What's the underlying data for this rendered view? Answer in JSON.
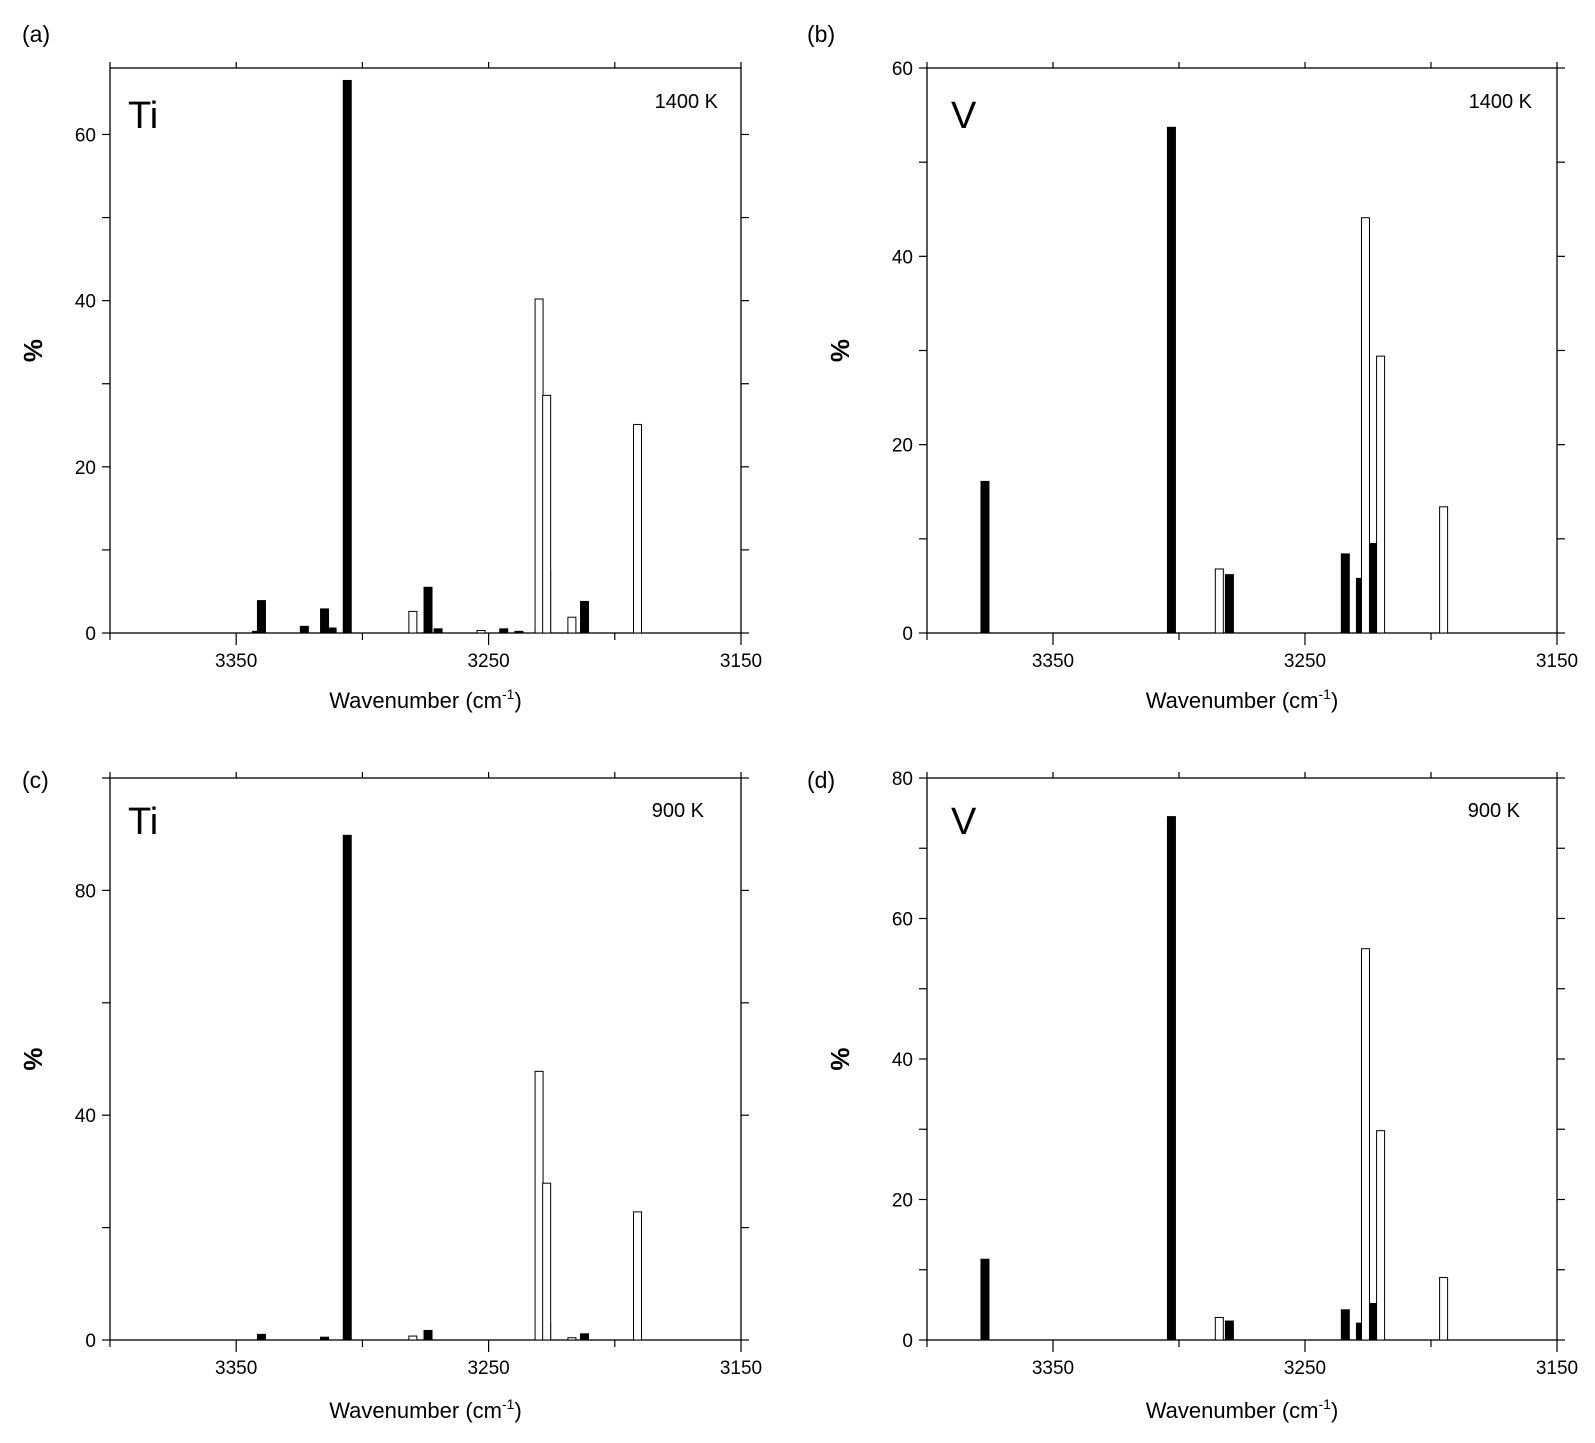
{
  "chart_data": [
    {
      "type": "bar",
      "panel": "(a)",
      "element": "Ti",
      "temperature": "1400 K",
      "xlabel": "Wavenumber",
      "xunit_base": "cm",
      "xunit_exp": "-1",
      "ylabel": "%",
      "xlim": [
        3400,
        3150
      ],
      "ylim": [
        0,
        68
      ],
      "x_ticks": [
        3350,
        3250,
        3150
      ],
      "y_ticks": [
        0,
        20,
        40,
        60
      ],
      "series": [
        {
          "name": "filled",
          "fill": "#000000",
          "points": [
            {
              "x": 3342,
              "y": 0.2
            },
            {
              "x": 3340,
              "y": 3.9
            },
            {
              "x": 3323,
              "y": 0.8
            },
            {
              "x": 3315,
              "y": 2.9
            },
            {
              "x": 3312,
              "y": 0.6
            },
            {
              "x": 3306,
              "y": 66.5
            },
            {
              "x": 3274,
              "y": 5.5
            },
            {
              "x": 3270,
              "y": 0.5
            },
            {
              "x": 3244,
              "y": 0.5
            },
            {
              "x": 3238,
              "y": 0.2
            },
            {
              "x": 3230,
              "y": 0.4
            },
            {
              "x": 3227,
              "y": 7.5
            },
            {
              "x": 3212,
              "y": 3.8
            }
          ]
        },
        {
          "name": "open",
          "fill": "#ffffff",
          "points": [
            {
              "x": 3280,
              "y": 2.6
            },
            {
              "x": 3253,
              "y": 0.3
            },
            {
              "x": 3230,
              "y": 40.2
            },
            {
              "x": 3227,
              "y": 28.6
            },
            {
              "x": 3217,
              "y": 1.9
            },
            {
              "x": 3191,
              "y": 25.1
            }
          ]
        }
      ]
    },
    {
      "type": "bar",
      "panel": "(b)",
      "element": "V",
      "temperature": "1400 K",
      "xlabel": "Wavenumber",
      "xunit_base": "cm",
      "xunit_exp": "-1",
      "ylabel": "%",
      "xlim": [
        3400,
        3150
      ],
      "ylim": [
        0,
        60
      ],
      "x_ticks": [
        3350,
        3250,
        3150
      ],
      "y_ticks": [
        0,
        20,
        40,
        60
      ],
      "series": [
        {
          "name": "filled",
          "fill": "#000000",
          "points": [
            {
              "x": 3377,
              "y": 16.1
            },
            {
              "x": 3303,
              "y": 53.7
            },
            {
              "x": 3280,
              "y": 6.2
            },
            {
              "x": 3234,
              "y": 8.4
            },
            {
              "x": 3228,
              "y": 5.8
            },
            {
              "x": 3223,
              "y": 9.5
            }
          ]
        },
        {
          "name": "open",
          "fill": "#ffffff",
          "points": [
            {
              "x": 3284,
              "y": 6.8
            },
            {
              "x": 3226,
              "y": 44.1
            },
            {
              "x": 3220,
              "y": 29.4
            },
            {
              "x": 3195,
              "y": 13.4
            }
          ]
        }
      ]
    },
    {
      "type": "bar",
      "panel": "(c)",
      "element": "Ti",
      "temperature": "900 K",
      "xlabel": "Wavenumber",
      "xunit_base": "cm",
      "xunit_exp": "-1",
      "ylabel": "%",
      "xlim": [
        3400,
        3150
      ],
      "ylim": [
        0,
        100
      ],
      "x_ticks": [
        3350,
        3250,
        3150
      ],
      "y_ticks": [
        0,
        40,
        80
      ],
      "series": [
        {
          "name": "filled",
          "fill": "#000000",
          "points": [
            {
              "x": 3340,
              "y": 1.0
            },
            {
              "x": 3315,
              "y": 0.5
            },
            {
              "x": 3306,
              "y": 89.8
            },
            {
              "x": 3274,
              "y": 1.7
            },
            {
              "x": 3227,
              "y": 3.0
            },
            {
              "x": 3212,
              "y": 1.1
            }
          ]
        },
        {
          "name": "open",
          "fill": "#ffffff",
          "points": [
            {
              "x": 3280,
              "y": 0.7
            },
            {
              "x": 3230,
              "y": 47.8
            },
            {
              "x": 3227,
              "y": 27.9
            },
            {
              "x": 3217,
              "y": 0.4
            },
            {
              "x": 3191,
              "y": 22.8
            }
          ]
        }
      ]
    },
    {
      "type": "bar",
      "panel": "(d)",
      "element": "V",
      "temperature": "900 K",
      "xlabel": "Wavenumber",
      "xunit_base": "cm",
      "xunit_exp": "-1",
      "ylabel": "%",
      "xlim": [
        3400,
        3150
      ],
      "ylim": [
        0,
        80
      ],
      "x_ticks": [
        3350,
        3250,
        3150
      ],
      "y_ticks": [
        0,
        20,
        40,
        60,
        80
      ],
      "series": [
        {
          "name": "filled",
          "fill": "#000000",
          "points": [
            {
              "x": 3377,
              "y": 11.5
            },
            {
              "x": 3303,
              "y": 74.5
            },
            {
              "x": 3280,
              "y": 2.7
            },
            {
              "x": 3234,
              "y": 4.3
            },
            {
              "x": 3228,
              "y": 2.4
            },
            {
              "x": 3223,
              "y": 5.2
            }
          ]
        },
        {
          "name": "open",
          "fill": "#ffffff",
          "points": [
            {
              "x": 3284,
              "y": 3.2
            },
            {
              "x": 3226,
              "y": 55.7
            },
            {
              "x": 3220,
              "y": 29.8
            },
            {
              "x": 3195,
              "y": 8.9
            }
          ]
        }
      ]
    }
  ]
}
